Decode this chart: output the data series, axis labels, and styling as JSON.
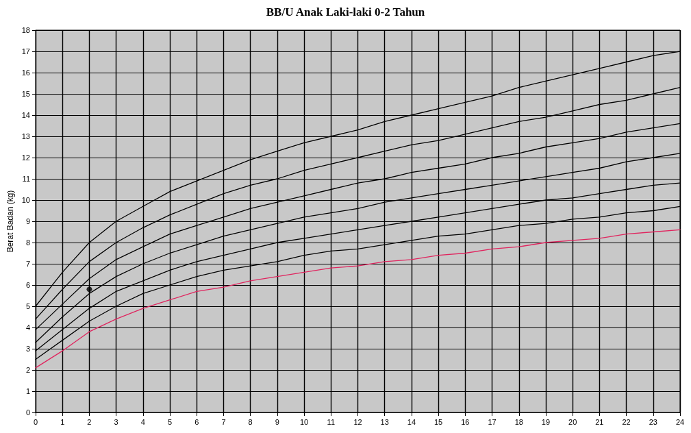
{
  "chart_data": {
    "type": "line",
    "title": "BB/U Anak Laki-laki 0-2 Tahun",
    "ylabel": "Berat Badan (kg)",
    "x": [
      0,
      1,
      2,
      3,
      4,
      5,
      6,
      7,
      8,
      9,
      10,
      11,
      12,
      13,
      14,
      15,
      16,
      17,
      18,
      19,
      20,
      21,
      22,
      23,
      24
    ],
    "xlim": [
      0,
      24
    ],
    "xticks": [
      0,
      1,
      2,
      3,
      4,
      5,
      6,
      7,
      8,
      9,
      10,
      11,
      12,
      13,
      14,
      15,
      16,
      17,
      18,
      19,
      20,
      21,
      22,
      23,
      24
    ],
    "ylim": [
      0,
      18
    ],
    "yticks": [
      0,
      1,
      2,
      3,
      4,
      5,
      6,
      7,
      8,
      9,
      10,
      11,
      12,
      13,
      14,
      15,
      16,
      17,
      18
    ],
    "grid": true,
    "marker": "none",
    "line_style": "solid",
    "series": [
      {
        "color": "#000000",
        "values": [
          5.0,
          6.6,
          8.0,
          9.0,
          9.7,
          10.4,
          10.9,
          11.4,
          11.9,
          12.3,
          12.7,
          13.0,
          13.3,
          13.7,
          14.0,
          14.3,
          14.6,
          14.9,
          15.3,
          15.6,
          15.9,
          16.2,
          16.5,
          16.8,
          17.0
        ]
      },
      {
        "color": "#000000",
        "values": [
          4.4,
          5.8,
          7.1,
          8.0,
          8.7,
          9.3,
          9.8,
          10.3,
          10.7,
          11.0,
          11.4,
          11.7,
          12.0,
          12.3,
          12.6,
          12.8,
          13.1,
          13.4,
          13.7,
          13.9,
          14.2,
          14.5,
          14.7,
          15.0,
          15.3
        ]
      },
      {
        "color": "#000000",
        "values": [
          3.9,
          5.1,
          6.3,
          7.2,
          7.8,
          8.4,
          8.8,
          9.2,
          9.6,
          9.9,
          10.2,
          10.5,
          10.8,
          11.0,
          11.3,
          11.5,
          11.7,
          12.0,
          12.2,
          12.5,
          12.7,
          12.9,
          13.2,
          13.4,
          13.6
        ]
      },
      {
        "color": "#000000",
        "values": [
          3.3,
          4.5,
          5.6,
          6.4,
          7.0,
          7.5,
          7.9,
          8.3,
          8.6,
          8.9,
          9.2,
          9.4,
          9.6,
          9.9,
          10.1,
          10.3,
          10.5,
          10.7,
          10.9,
          11.1,
          11.3,
          11.5,
          11.8,
          12.0,
          12.2
        ]
      },
      {
        "color": "#000000",
        "values": [
          2.9,
          3.9,
          4.9,
          5.7,
          6.2,
          6.7,
          7.1,
          7.4,
          7.7,
          8.0,
          8.2,
          8.4,
          8.6,
          8.8,
          9.0,
          9.2,
          9.4,
          9.6,
          9.8,
          10.0,
          10.1,
          10.3,
          10.5,
          10.7,
          10.8
        ]
      },
      {
        "color": "#000000",
        "values": [
          2.5,
          3.4,
          4.3,
          5.0,
          5.6,
          6.0,
          6.4,
          6.7,
          6.9,
          7.1,
          7.4,
          7.6,
          7.7,
          7.9,
          8.1,
          8.3,
          8.4,
          8.6,
          8.8,
          8.9,
          9.1,
          9.2,
          9.4,
          9.5,
          9.7
        ]
      },
      {
        "color": "#e0245e",
        "values": [
          2.1,
          2.9,
          3.8,
          4.4,
          4.9,
          5.3,
          5.7,
          5.9,
          6.2,
          6.4,
          6.6,
          6.8,
          6.9,
          7.1,
          7.2,
          7.4,
          7.5,
          7.7,
          7.8,
          8.0,
          8.1,
          8.2,
          8.4,
          8.5,
          8.6
        ]
      },
      {
        "type": "scatter",
        "marker": "circle",
        "color": "#000000",
        "x": [
          2
        ],
        "values": [
          5.8
        ]
      }
    ]
  }
}
